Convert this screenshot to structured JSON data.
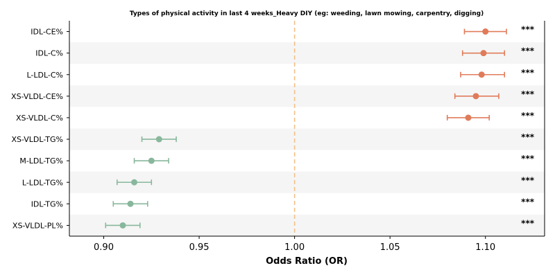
{
  "chart_data": {
    "type": "scatter",
    "title": "Types of physical activity in last 4 weeks_Heavy DIY (eg: weeding, lawn mowing, carpentry, digging)",
    "xlabel": "Odds Ratio (OR)",
    "ylabel": "",
    "xlim": [
      0.882,
      1.131
    ],
    "xticks": [
      "0.90",
      "0.95",
      "1.00",
      "1.05",
      "1.10"
    ],
    "reference_line": 1.0,
    "grid": false,
    "colors": {
      "positive": "#e07b5a",
      "negative": "#88b79c",
      "reference": "#f3c089",
      "band": "#f5f5f5"
    },
    "rows": [
      {
        "label": "IDL-CE%",
        "or": 1.1,
        "lo": 1.089,
        "hi": 1.111,
        "sig": "***",
        "direction": "positive"
      },
      {
        "label": "IDL-C%",
        "or": 1.099,
        "lo": 1.088,
        "hi": 1.11,
        "sig": "***",
        "direction": "positive"
      },
      {
        "label": "L-LDL-C%",
        "or": 1.098,
        "lo": 1.087,
        "hi": 1.11,
        "sig": "***",
        "direction": "positive"
      },
      {
        "label": "XS-VLDL-CE%",
        "or": 1.095,
        "lo": 1.084,
        "hi": 1.107,
        "sig": "***",
        "direction": "positive"
      },
      {
        "label": "XS-VLDL-C%",
        "or": 1.091,
        "lo": 1.08,
        "hi": 1.102,
        "sig": "***",
        "direction": "positive"
      },
      {
        "label": "XS-VLDL-TG%",
        "or": 0.929,
        "lo": 0.92,
        "hi": 0.938,
        "sig": "***",
        "direction": "negative"
      },
      {
        "label": "M-LDL-TG%",
        "or": 0.925,
        "lo": 0.916,
        "hi": 0.934,
        "sig": "***",
        "direction": "negative"
      },
      {
        "label": "L-LDL-TG%",
        "or": 0.916,
        "lo": 0.907,
        "hi": 0.925,
        "sig": "***",
        "direction": "negative"
      },
      {
        "label": "IDL-TG%",
        "or": 0.914,
        "lo": 0.905,
        "hi": 0.923,
        "sig": "***",
        "direction": "negative"
      },
      {
        "label": "XS-VLDL-PL%",
        "or": 0.91,
        "lo": 0.901,
        "hi": 0.919,
        "sig": "***",
        "direction": "negative"
      }
    ]
  }
}
